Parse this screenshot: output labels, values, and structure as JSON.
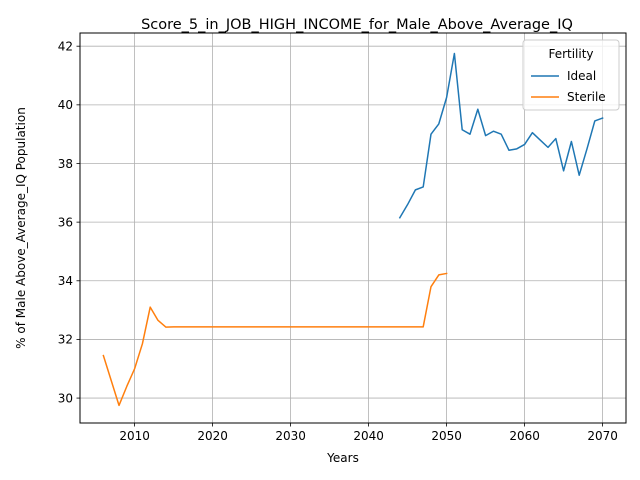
{
  "chart_data": {
    "type": "line",
    "title": "Score_5_in_JOB_HIGH_INCOME_for_Male_Above_Average_IQ",
    "xlabel": "Years",
    "ylabel": "% of Male Above_Average_IQ Population",
    "xlim": [
      2003,
      2073
    ],
    "ylim": [
      29.15,
      42.45
    ],
    "xticks": [
      2010,
      2020,
      2030,
      2040,
      2050,
      2060,
      2070
    ],
    "yticks": [
      30,
      32,
      34,
      36,
      38,
      40,
      42
    ],
    "grid": true,
    "legend": {
      "title": "Fertility",
      "placement": "upper-right"
    },
    "series": [
      {
        "name": "Ideal",
        "color": "#1f77b4",
        "x": [
          2044,
          2045,
          2046,
          2047,
          2048,
          2049,
          2050,
          2051,
          2052,
          2053,
          2054,
          2055,
          2056,
          2057,
          2058,
          2059,
          2060,
          2061,
          2062,
          2063,
          2064,
          2065,
          2066,
          2067,
          2068,
          2069,
          2070
        ],
        "y": [
          36.15,
          36.6,
          37.1,
          37.2,
          39.0,
          39.35,
          40.25,
          41.75,
          39.15,
          39.0,
          39.85,
          38.95,
          39.1,
          39.0,
          38.45,
          38.5,
          38.65,
          39.05,
          38.8,
          38.55,
          38.85,
          37.75,
          38.75,
          37.6,
          38.5,
          39.45,
          39.55
        ]
      },
      {
        "name": "Sterile",
        "color": "#ff7f0e",
        "x": [
          2006,
          2007,
          2008,
          2009,
          2010,
          2011,
          2012,
          2013,
          2014,
          2015,
          2016,
          2017,
          2018,
          2019,
          2020,
          2021,
          2022,
          2023,
          2024,
          2025,
          2026,
          2027,
          2028,
          2029,
          2030,
          2031,
          2032,
          2033,
          2034,
          2035,
          2036,
          2037,
          2038,
          2039,
          2040,
          2041,
          2042,
          2043,
          2044,
          2045,
          2046,
          2047,
          2048,
          2049,
          2050
        ],
        "y": [
          31.45,
          30.6,
          29.75,
          30.4,
          31.0,
          31.85,
          33.1,
          32.65,
          32.42,
          32.43,
          32.43,
          32.43,
          32.43,
          32.43,
          32.43,
          32.43,
          32.43,
          32.43,
          32.43,
          32.43,
          32.43,
          32.43,
          32.43,
          32.43,
          32.43,
          32.43,
          32.43,
          32.43,
          32.43,
          32.43,
          32.43,
          32.43,
          32.43,
          32.43,
          32.43,
          32.43,
          32.43,
          32.43,
          32.43,
          32.43,
          32.43,
          32.43,
          33.8,
          34.2,
          34.25
        ]
      }
    ]
  }
}
